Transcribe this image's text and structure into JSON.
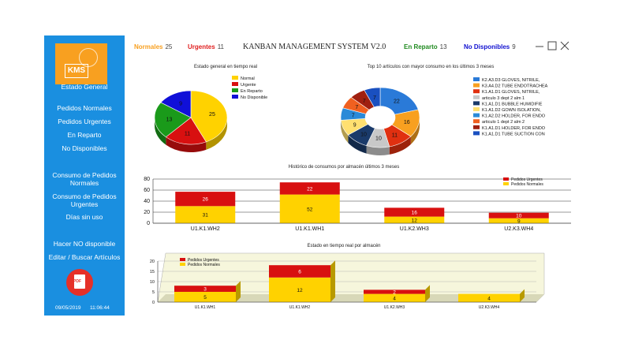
{
  "sidebar": {
    "logo_text": "KMS",
    "items": [
      {
        "label": "Estado General"
      },
      {
        "label": "Pedidos Normales"
      },
      {
        "label": "Pedidos Urgentes"
      },
      {
        "label": "En Reparto"
      },
      {
        "label": "No Disponibles"
      },
      {
        "label": "Consumo de Pedidos Normales"
      },
      {
        "label": "Consumo de Pedidos Urgentes"
      },
      {
        "label": "Días sin uso"
      },
      {
        "label": "Hacer NO disponible"
      },
      {
        "label": "Editar / Buscar Artículos"
      }
    ],
    "pdf_label": "PDF",
    "date": "09/05/2019",
    "time": "11:06:44"
  },
  "header": {
    "normales_label": "Normales",
    "normales_count": "25",
    "urgentes_label": "Urgentes",
    "urgentes_count": "11",
    "title": "KANBAN MANAGEMENT SYSTEM V2.0",
    "reparto_label": "En Reparto",
    "reparto_count": "13",
    "nodisp_label": "No Disponibles",
    "nodisp_count": "9",
    "colors": {
      "normales": "#f8a020",
      "urgentes": "#e02020",
      "reparto": "#1f8a1f",
      "nodisp": "#1010d0"
    }
  },
  "chart_data": [
    {
      "type": "pie",
      "title": "Estado general en tiempo real",
      "categories": [
        "Normal",
        "Urgente",
        "En Reparto",
        "No Disponible"
      ],
      "values": [
        25,
        11,
        13,
        9
      ],
      "colors": [
        "#ffd200",
        "#d81010",
        "#1a9a1a",
        "#1010d8"
      ]
    },
    {
      "type": "pie",
      "title": "Top 10 artículos con mayor consumo en los últimos 3 meses",
      "categories": [
        "K2.A3.D3 GLOVES, NITRILE,",
        "K3.A4.D2 TUBE ENDOTRACHEA",
        "K1.A1.D1 GLOVES, NITRILE,",
        "articulo 3 dept 2 alm 1",
        "K1.A1.D1 BUBBLE HUMIDIFIE",
        "K1.A1.D2 GOWN ISOLATION,",
        "K1.A2.D2 HOLDER, FOR ENDO",
        "articulo 1 dept 2 alm 2",
        "K1.A1.D1 HOLDER, FOR ENDO",
        "K1.A1.D1 TUBE SUCTION CON"
      ],
      "values": [
        22,
        16,
        11,
        10,
        10,
        9,
        7,
        7,
        7,
        7
      ],
      "colors": [
        "#2a7ad8",
        "#f8a020",
        "#e03010",
        "#c8c8c8",
        "#1a3a6a",
        "#ffe070",
        "#2a8ad8",
        "#f06020",
        "#a02010",
        "#1a50c0"
      ]
    },
    {
      "type": "bar",
      "title": "Histórico de consumos por almacén últimos 3 meses",
      "categories": [
        "U1.K1.WH2",
        "U1.K1.WH1",
        "U1.K2.WH3",
        "U2.K3.WH4"
      ],
      "series": [
        {
          "name": "Pedidos Normales",
          "values": [
            31,
            52,
            12,
            9
          ]
        },
        {
          "name": "Pedidos Urgentes",
          "values": [
            26,
            22,
            16,
            10
          ]
        }
      ],
      "ylim": [
        0,
        80
      ],
      "yticks": [
        "0",
        "20",
        "40",
        "60",
        "80"
      ],
      "grid": true,
      "legend": "top-right"
    },
    {
      "type": "bar",
      "title": "Estado en tiempo real por almacén",
      "categories": [
        "U1.K1.WH1",
        "U1.K1.WH2",
        "U1.K2.WH3",
        "U2.K3.WH4"
      ],
      "series": [
        {
          "name": "Pedidos Normales",
          "values": [
            5,
            12,
            4,
            4
          ]
        },
        {
          "name": "Pedidos Urgentes",
          "values": [
            3,
            6,
            2,
            0
          ]
        }
      ],
      "ylim": [
        0,
        20
      ],
      "yticks": [
        "0",
        "5",
        "10",
        "15",
        "20"
      ],
      "grid": true,
      "legend": "top-left"
    }
  ]
}
